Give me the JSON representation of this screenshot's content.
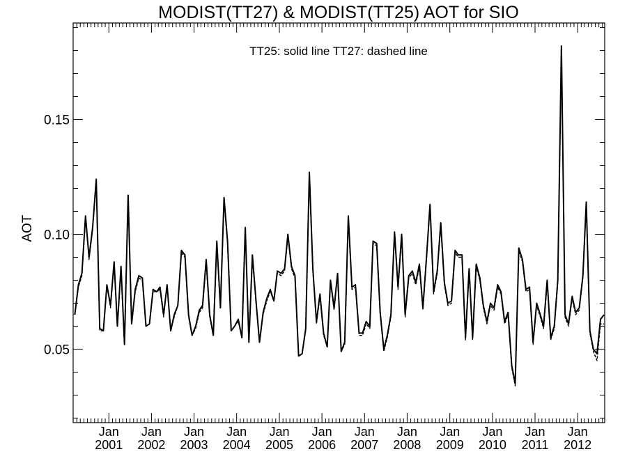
{
  "chart_data": {
    "type": "line",
    "title": "MODIST(TT27) & MODIST(TT25)  AOT for SIO",
    "annotation": "TT25: solid line   TT27: dashed line",
    "xlabel": "",
    "ylabel": "AOT",
    "xlim": [
      "2000-03-01",
      "2012-08-20"
    ],
    "ylim": [
      0.018,
      0.192
    ],
    "grid": false,
    "y_ticks": [
      {
        "value": 0.05,
        "label": "0.05"
      },
      {
        "value": 0.1,
        "label": "0.10"
      },
      {
        "value": 0.15,
        "label": "0.15"
      }
    ],
    "x_ticks": [
      {
        "date": "2001-01-01",
        "month": "Jan",
        "year": "2001"
      },
      {
        "date": "2002-01-01",
        "month": "Jan",
        "year": "2002"
      },
      {
        "date": "2003-01-01",
        "month": "Jan",
        "year": "2003"
      },
      {
        "date": "2004-01-01",
        "month": "Jan",
        "year": "2004"
      },
      {
        "date": "2005-01-01",
        "month": "Jan",
        "year": "2005"
      },
      {
        "date": "2006-01-01",
        "month": "Jan",
        "year": "2006"
      },
      {
        "date": "2007-01-01",
        "month": "Jan",
        "year": "2007"
      },
      {
        "date": "2008-01-01",
        "month": "Jan",
        "year": "2008"
      },
      {
        "date": "2009-01-01",
        "month": "Jan",
        "year": "2009"
      },
      {
        "date": "2010-01-01",
        "month": "Jan",
        "year": "2010"
      },
      {
        "date": "2011-01-01",
        "month": "Jan",
        "year": "2011"
      },
      {
        "date": "2012-01-01",
        "month": "Jan",
        "year": "2012"
      }
    ],
    "x": [
      "2000-03",
      "2000-04",
      "2000-05",
      "2000-06",
      "2000-07",
      "2000-08",
      "2000-09",
      "2000-10",
      "2000-11",
      "2000-12",
      "2001-01",
      "2001-02",
      "2001-03",
      "2001-04",
      "2001-05",
      "2001-06",
      "2001-07",
      "2001-08",
      "2001-09",
      "2001-10",
      "2001-11",
      "2001-12",
      "2002-01",
      "2002-02",
      "2002-03",
      "2002-04",
      "2002-05",
      "2002-06",
      "2002-07",
      "2002-08",
      "2002-09",
      "2002-10",
      "2002-11",
      "2002-12",
      "2003-01",
      "2003-02",
      "2003-03",
      "2003-04",
      "2003-05",
      "2003-06",
      "2003-07",
      "2003-08",
      "2003-09",
      "2003-10",
      "2003-11",
      "2003-12",
      "2004-01",
      "2004-02",
      "2004-03",
      "2004-04",
      "2004-05",
      "2004-06",
      "2004-07",
      "2004-08",
      "2004-09",
      "2004-10",
      "2004-11",
      "2004-12",
      "2005-01",
      "2005-02",
      "2005-03",
      "2005-04",
      "2005-05",
      "2005-06",
      "2005-07",
      "2005-08",
      "2005-09",
      "2005-10",
      "2005-11",
      "2005-12",
      "2006-01",
      "2006-02",
      "2006-03",
      "2006-04",
      "2006-05",
      "2006-06",
      "2006-07",
      "2006-08",
      "2006-09",
      "2006-10",
      "2006-11",
      "2006-12",
      "2007-01",
      "2007-02",
      "2007-03",
      "2007-04",
      "2007-05",
      "2007-06",
      "2007-07",
      "2007-08",
      "2007-09",
      "2007-10",
      "2007-11",
      "2007-12",
      "2008-01",
      "2008-02",
      "2008-03",
      "2008-04",
      "2008-05",
      "2008-06",
      "2008-07",
      "2008-08",
      "2008-09",
      "2008-10",
      "2008-11",
      "2008-12",
      "2009-01",
      "2009-02",
      "2009-03",
      "2009-04",
      "2009-05",
      "2009-06",
      "2009-07",
      "2009-08",
      "2009-09",
      "2009-10",
      "2009-11",
      "2009-12",
      "2010-01",
      "2010-02",
      "2010-03",
      "2010-04",
      "2010-05",
      "2010-06",
      "2010-07",
      "2010-08",
      "2010-09",
      "2010-10",
      "2010-11",
      "2010-12",
      "2011-01",
      "2011-02",
      "2011-03",
      "2011-04",
      "2011-05",
      "2011-06",
      "2011-07",
      "2011-08",
      "2011-09",
      "2011-10",
      "2011-11",
      "2011-12",
      "2012-01",
      "2012-02",
      "2012-03",
      "2012-04",
      "2012-05",
      "2012-06",
      "2012-07",
      "2012-08"
    ],
    "series": [
      {
        "name": "TT25",
        "style": "solid",
        "color": "#000000",
        "values": [
          0.065,
          0.078,
          0.083,
          0.108,
          0.09,
          0.103,
          0.124,
          0.059,
          0.058,
          0.078,
          0.069,
          0.088,
          0.06,
          0.086,
          0.052,
          0.117,
          0.061,
          0.076,
          0.082,
          0.081,
          0.06,
          0.061,
          0.076,
          0.075,
          0.077,
          0.065,
          0.078,
          0.058,
          0.065,
          0.069,
          0.093,
          0.091,
          0.065,
          0.056,
          0.06,
          0.067,
          0.069,
          0.089,
          0.065,
          0.056,
          0.097,
          0.068,
          0.116,
          0.097,
          0.058,
          0.06,
          0.063,
          0.055,
          0.103,
          0.053,
          0.091,
          0.071,
          0.053,
          0.066,
          0.072,
          0.076,
          0.071,
          0.084,
          0.083,
          0.085,
          0.1,
          0.086,
          0.082,
          0.047,
          0.048,
          0.059,
          0.127,
          0.085,
          0.062,
          0.074,
          0.057,
          0.051,
          0.08,
          0.068,
          0.083,
          0.049,
          0.053,
          0.108,
          0.077,
          0.078,
          0.057,
          0.057,
          0.062,
          0.06,
          0.097,
          0.096,
          0.066,
          0.05,
          0.056,
          0.065,
          0.101,
          0.077,
          0.1,
          0.065,
          0.082,
          0.084,
          0.079,
          0.087,
          0.068,
          0.09,
          0.113,
          0.075,
          0.084,
          0.105,
          0.079,
          0.07,
          0.071,
          0.093,
          0.091,
          0.091,
          0.055,
          0.085,
          0.055,
          0.087,
          0.081,
          0.069,
          0.062,
          0.07,
          0.068,
          0.078,
          0.075,
          0.062,
          0.066,
          0.043,
          0.035,
          0.094,
          0.089,
          0.076,
          0.077,
          0.053,
          0.07,
          0.065,
          0.06,
          0.08,
          0.055,
          0.06,
          0.08,
          0.182,
          0.065,
          0.061,
          0.073,
          0.066,
          0.068,
          0.082,
          0.114,
          0.058,
          0.05,
          0.048,
          0.063,
          0.065
        ]
      },
      {
        "name": "TT27",
        "style": "dashed",
        "color": "#000000",
        "values": [
          0.065,
          0.077,
          0.082,
          0.107,
          0.089,
          0.102,
          0.123,
          0.058,
          0.058,
          0.078,
          0.068,
          0.087,
          0.06,
          0.085,
          0.052,
          0.116,
          0.061,
          0.075,
          0.081,
          0.08,
          0.06,
          0.061,
          0.075,
          0.075,
          0.076,
          0.064,
          0.077,
          0.058,
          0.064,
          0.069,
          0.092,
          0.09,
          0.064,
          0.056,
          0.059,
          0.066,
          0.068,
          0.088,
          0.064,
          0.056,
          0.096,
          0.068,
          0.115,
          0.096,
          0.058,
          0.06,
          0.062,
          0.055,
          0.102,
          0.053,
          0.09,
          0.07,
          0.053,
          0.065,
          0.071,
          0.075,
          0.071,
          0.083,
          0.082,
          0.084,
          0.099,
          0.085,
          0.081,
          0.047,
          0.048,
          0.058,
          0.126,
          0.084,
          0.061,
          0.073,
          0.056,
          0.051,
          0.079,
          0.067,
          0.082,
          0.049,
          0.052,
          0.107,
          0.076,
          0.077,
          0.056,
          0.056,
          0.061,
          0.059,
          0.096,
          0.095,
          0.065,
          0.049,
          0.055,
          0.064,
          0.1,
          0.076,
          0.099,
          0.064,
          0.081,
          0.083,
          0.078,
          0.086,
          0.067,
          0.089,
          0.112,
          0.074,
          0.083,
          0.104,
          0.078,
          0.069,
          0.07,
          0.092,
          0.09,
          0.09,
          0.054,
          0.084,
          0.054,
          0.086,
          0.08,
          0.068,
          0.061,
          0.069,
          0.067,
          0.077,
          0.074,
          0.061,
          0.065,
          0.042,
          0.034,
          0.093,
          0.088,
          0.075,
          0.076,
          0.052,
          0.069,
          0.064,
          0.059,
          0.079,
          0.054,
          0.059,
          0.079,
          0.18,
          0.064,
          0.06,
          0.072,
          0.065,
          0.067,
          0.081,
          0.113,
          0.057,
          0.049,
          0.045,
          0.061,
          0.061
        ]
      }
    ]
  }
}
